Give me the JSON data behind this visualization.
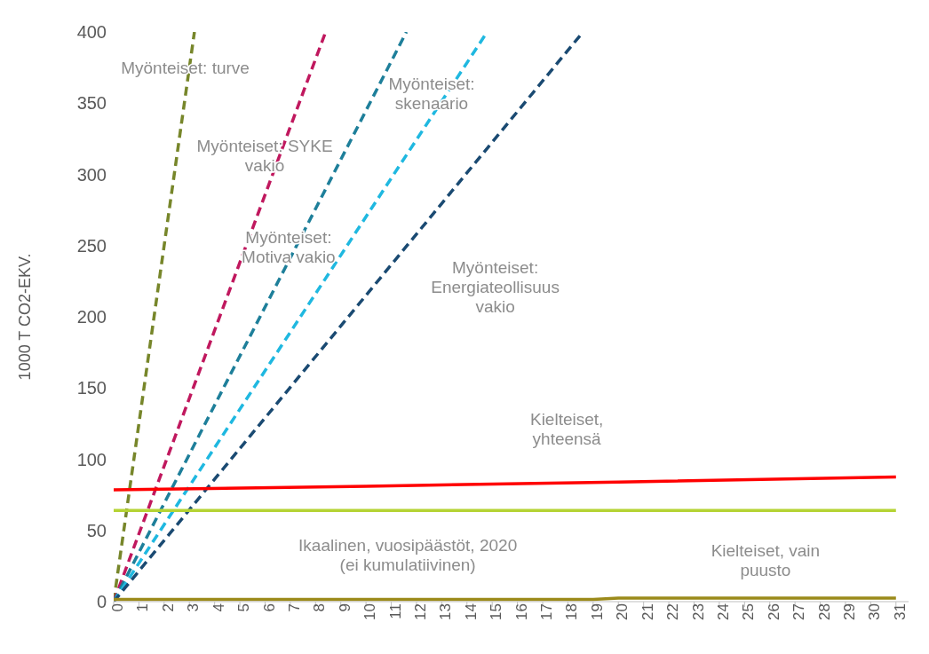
{
  "chart_data": {
    "type": "line",
    "ylabel": "1000 T CO2-EKV.",
    "xlim": [
      0,
      31.5
    ],
    "xticks": [
      0,
      1,
      2,
      3,
      4,
      5,
      6,
      7,
      8,
      9,
      10,
      11,
      12,
      13,
      14,
      15,
      16,
      17,
      18,
      19,
      20,
      21,
      22,
      23,
      24,
      25,
      26,
      27,
      28,
      29,
      30,
      31
    ],
    "ylim": [
      0,
      400
    ],
    "yticks": [
      0,
      50,
      100,
      150,
      200,
      250,
      300,
      350,
      400
    ],
    "marker": "none",
    "series": [
      {
        "color": "#77862a",
        "line_style": "dashed",
        "x": [
          0,
          3.2
        ],
        "values": [
          0,
          400
        ]
      },
      {
        "color": "#c0185e",
        "line_style": "dashed",
        "x": [
          0,
          8.4
        ],
        "values": [
          0,
          400
        ]
      },
      {
        "color": "#1e7f9a",
        "line_style": "dashed",
        "x": [
          0,
          11.6
        ],
        "values": [
          0,
          400
        ]
      },
      {
        "color": "#1fb8e0",
        "line_style": "dashed",
        "x": [
          0,
          14.8
        ],
        "values": [
          0,
          400
        ]
      },
      {
        "color": "#1a4a72",
        "line_style": "dashed",
        "x": [
          0,
          18.6
        ],
        "values": [
          0,
          400
        ]
      },
      {
        "color": "#ff0000",
        "line_style": "solid",
        "x": [
          0,
          10,
          20,
          31
        ],
        "values": [
          78.5,
          81,
          84,
          87.5
        ]
      },
      {
        "color": "#b5d334",
        "line_style": "solid",
        "x": [
          0,
          31
        ],
        "values": [
          64,
          64
        ]
      },
      {
        "color": "#9b8a1a",
        "line_style": "solid",
        "x": [
          0,
          19,
          20,
          31
        ],
        "values": [
          1.5,
          1.5,
          2.5,
          2.5
        ]
      }
    ],
    "annotations": [
      "Myönteiset: turve",
      "Myönteiset: SYKE vakio",
      "Myönteiset: skenaario",
      "Myönteiset: Motiva vakio",
      "Myönteiset: Energiateollisuus vakio",
      "Kielteiset, yhteensä",
      "Ikaalinen, vuosipäästöt, 2020 (ei kumulatiivinen)",
      "Kielteiset, vain puusto"
    ]
  }
}
